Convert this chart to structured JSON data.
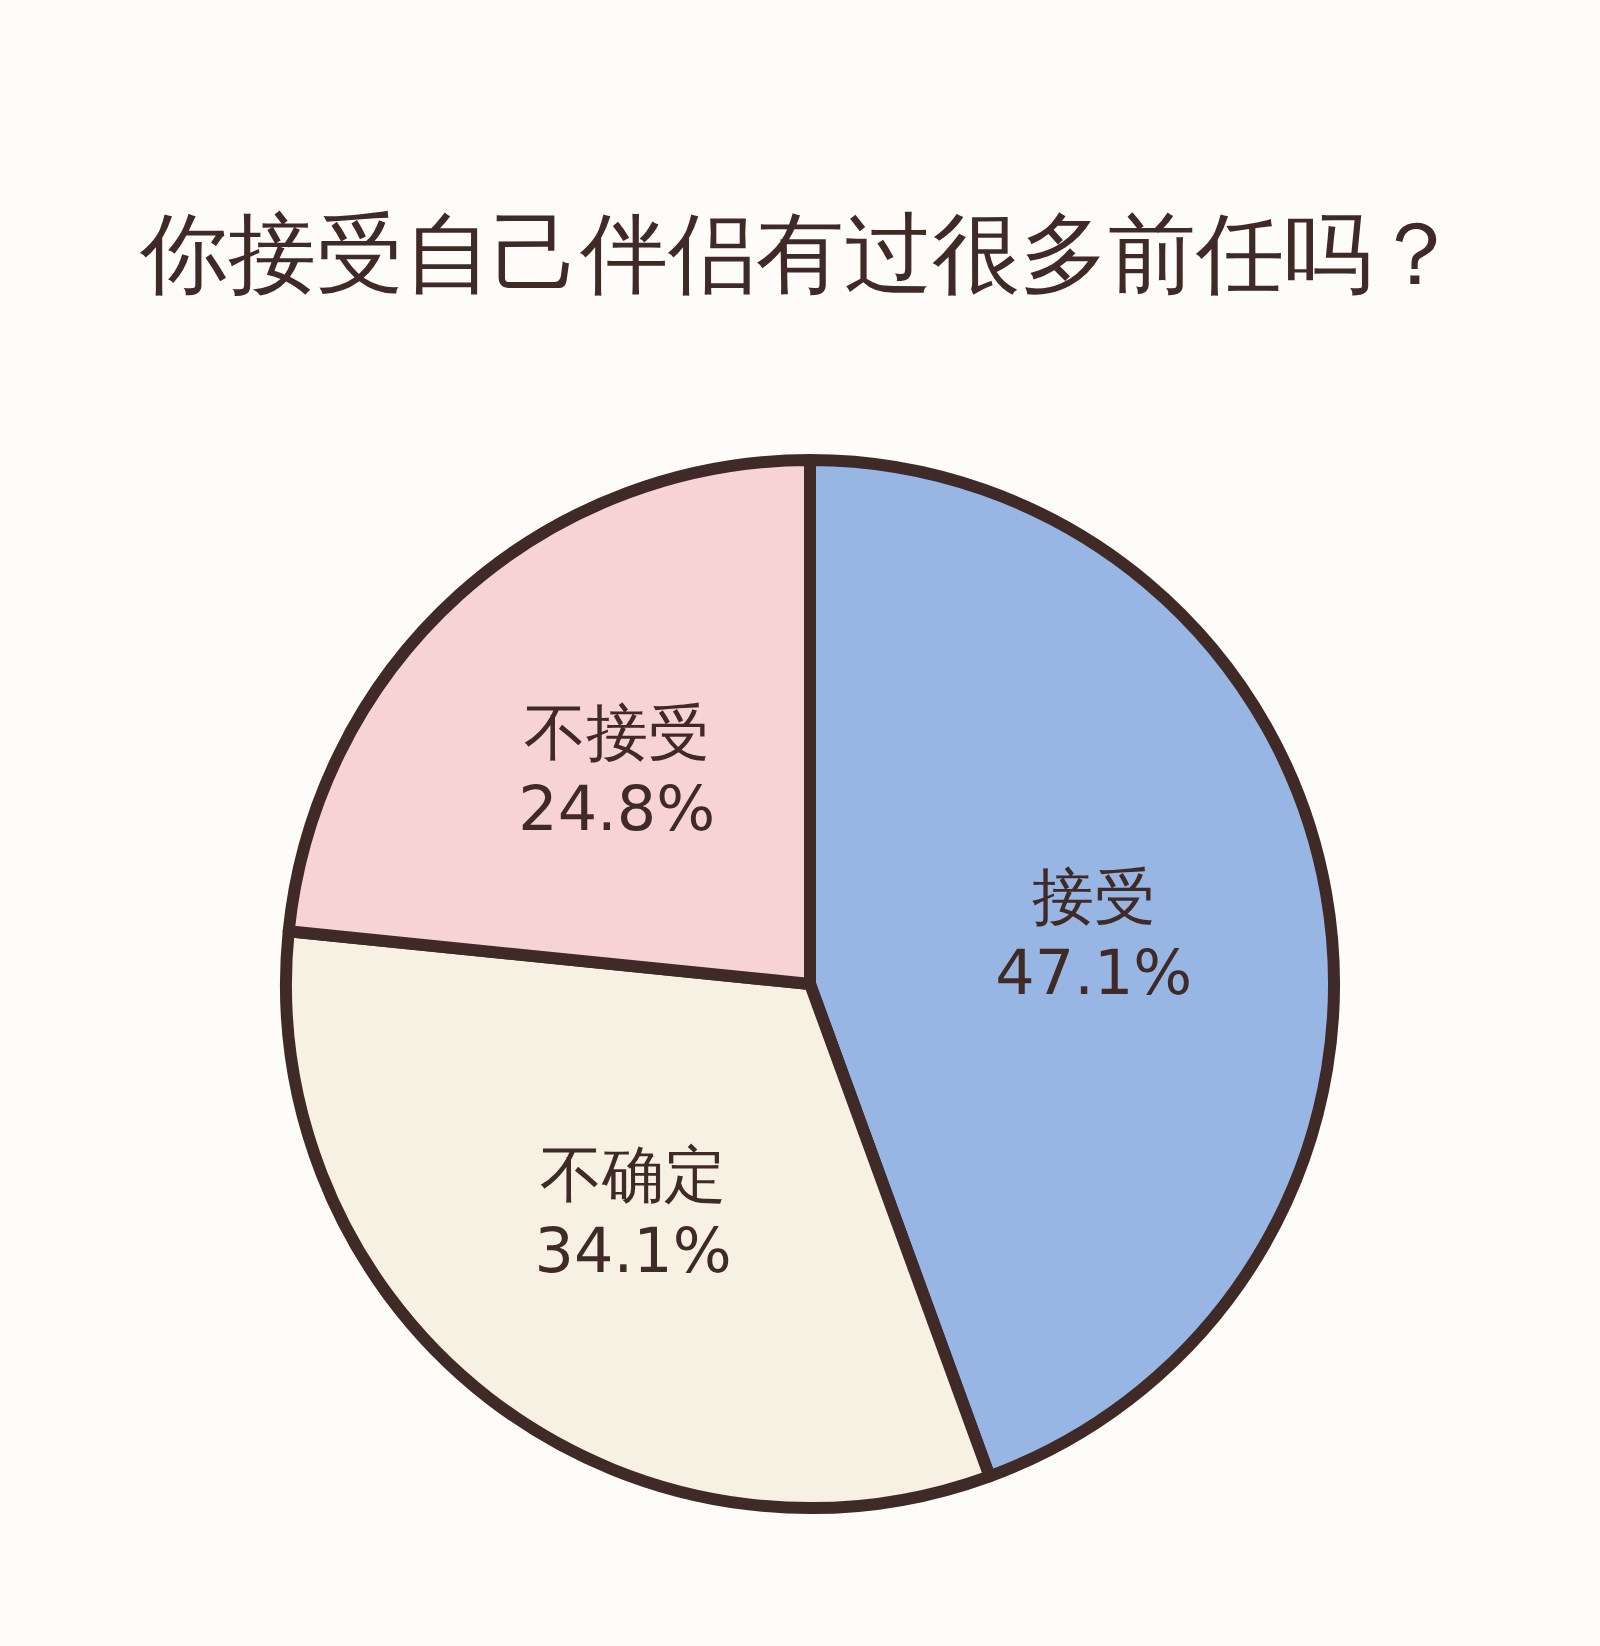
{
  "chart_data": {
    "type": "pie",
    "title": "你接受自己伴侣有过很多前任吗？",
    "categories": [
      "接受",
      "不确定",
      "不接受"
    ],
    "values": [
      47.1,
      34.1,
      24.8
    ],
    "value_labels": [
      "47.1%",
      "34.1%",
      "24.8%"
    ],
    "colors": [
      "#98b6e4",
      "#f7f1e4",
      "#f8d3d6"
    ],
    "legend": false
  }
}
